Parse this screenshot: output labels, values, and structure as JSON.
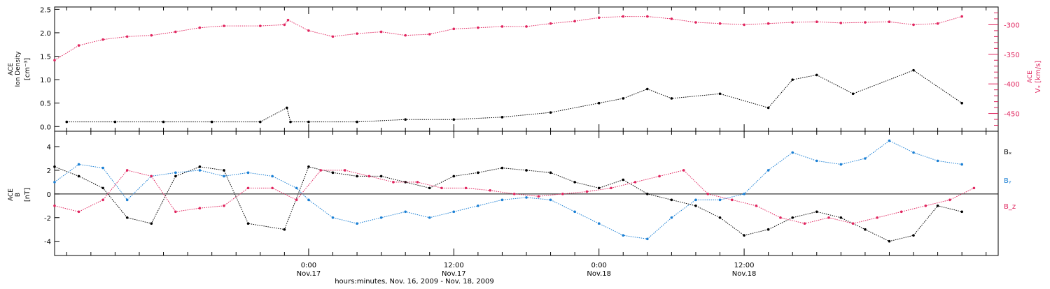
{
  "colors": {
    "axis": "#000000",
    "density": "#000000",
    "velocity": "#e0245e",
    "bx": "#000000",
    "by": "#1a7fd4",
    "bz": "#e0245e"
  },
  "chart_data": [
    {
      "type": "scatter",
      "panel": "top",
      "xlim_hours": [
        -21,
        57
      ],
      "left_axis": {
        "label_lines": [
          "ACE",
          "Ion Density"
        ],
        "unit": "[cm⁻³]",
        "ylim": [
          -0.1,
          2.55
        ],
        "ticks": [
          "0.0",
          "0.5",
          "1.0",
          "1.5",
          "2.0",
          "2.5"
        ],
        "tick_values": [
          0.0,
          0.5,
          1.0,
          1.5,
          2.0,
          2.5
        ]
      },
      "right_axis": {
        "label_lines": [
          "ACE",
          "Vₓ [km/s]"
        ],
        "ylim": [
          -480,
          -270
        ],
        "ticks": [
          "-300",
          "-350",
          "-400",
          "-450"
        ],
        "tick_values": [
          -300,
          -350,
          -400,
          -450
        ]
      },
      "series": [
        {
          "name": "Ion Density",
          "axis": "left",
          "color_key": "density",
          "x_hours": [
            -20,
            -16,
            -12,
            -8,
            -4,
            -1.8,
            -1.5,
            0,
            4,
            8,
            12,
            16,
            20,
            24,
            26,
            28,
            30,
            34,
            38,
            40,
            42,
            45,
            50,
            54
          ],
          "y": [
            0.1,
            0.1,
            0.1,
            0.1,
            0.1,
            0.4,
            0.1,
            0.1,
            0.1,
            0.15,
            0.15,
            0.2,
            0.3,
            0.5,
            0.6,
            0.8,
            0.6,
            0.7,
            0.4,
            1.0,
            1.1,
            0.7,
            1.2,
            0.5
          ]
        },
        {
          "name": "Vₓ",
          "axis": "right",
          "color_key": "velocity",
          "x_hours": [
            -21,
            -19,
            -17,
            -15,
            -13,
            -11,
            -9,
            -7,
            -4,
            -2,
            -1.7,
            0,
            2,
            4,
            6,
            8,
            10,
            12,
            14,
            16,
            18,
            20,
            22,
            24,
            26,
            28,
            30,
            32,
            34,
            36,
            38,
            40,
            42,
            44,
            46,
            48,
            50,
            52,
            54
          ],
          "y": [
            -360,
            -335,
            -325,
            -320,
            -318,
            -312,
            -305,
            -302,
            -302,
            -300,
            -292,
            -310,
            -320,
            -315,
            -312,
            -318,
            -316,
            -307,
            -305,
            -303,
            -303,
            -298,
            -294,
            -288,
            -286,
            -286,
            -290,
            -296,
            -298,
            -300,
            -298,
            -296,
            -295,
            -297,
            -296,
            -295,
            -300,
            -298,
            -286
          ]
        }
      ]
    },
    {
      "type": "scatter",
      "panel": "bottom",
      "xlim_hours": [
        -21,
        57
      ],
      "y_axis": {
        "label_lines": [
          "ACE",
          "B"
        ],
        "unit": "[nT]",
        "ylim": [
          -5.2,
          5.3
        ],
        "ticks": [
          "4",
          "2",
          "0",
          "-2",
          "-4"
        ],
        "tick_values": [
          4,
          2,
          0,
          -2,
          -4
        ]
      },
      "legend_position": "right",
      "series": [
        {
          "name": "Bₓ",
          "color_key": "bx",
          "x_hours": [
            -21,
            -19,
            -17,
            -15,
            -13,
            -11,
            -9,
            -7,
            -5,
            -2,
            0,
            2,
            4,
            6,
            8,
            10,
            12,
            14,
            16,
            18,
            20,
            22,
            24,
            26,
            28,
            30,
            32,
            34,
            36,
            38,
            40,
            42,
            44,
            46,
            48,
            50,
            52,
            54
          ],
          "y": [
            2.3,
            1.5,
            0.5,
            -2.0,
            -2.5,
            1.5,
            2.3,
            2.0,
            -2.5,
            -3.0,
            2.3,
            1.8,
            1.5,
            1.5,
            1.0,
            0.5,
            1.5,
            1.8,
            2.2,
            2.0,
            1.8,
            1.0,
            0.5,
            1.2,
            0,
            -0.5,
            -1.0,
            -2.0,
            -3.5,
            -3.0,
            -2.0,
            -1.5,
            -2.0,
            -3.0,
            -4.0,
            -3.5,
            -1.0,
            -1.5
          ]
        },
        {
          "name": "Bᵧ",
          "color_key": "by",
          "x_hours": [
            -21,
            -19,
            -17,
            -15,
            -13,
            -11,
            -9,
            -7,
            -5,
            -3,
            -1,
            0,
            2,
            4,
            6,
            8,
            10,
            12,
            14,
            16,
            18,
            20,
            22,
            24,
            26,
            28,
            30,
            32,
            34,
            36,
            38,
            40,
            42,
            44,
            46,
            48,
            50,
            52,
            54
          ],
          "y": [
            1.0,
            2.5,
            2.2,
            -0.5,
            1.5,
            1.8,
            2.0,
            1.5,
            1.8,
            1.5,
            0.5,
            -0.5,
            -2.0,
            -2.5,
            -2.0,
            -1.5,
            -2.0,
            -1.5,
            -1.0,
            -0.5,
            -0.3,
            -0.5,
            -1.5,
            -2.5,
            -3.5,
            -3.8,
            -2.0,
            -0.5,
            -0.5,
            0,
            2.0,
            3.5,
            2.8,
            2.5,
            3.0,
            4.5,
            3.5,
            2.8,
            2.5
          ]
        },
        {
          "name": "B_z",
          "color_key": "bz",
          "x_hours": [
            -21,
            -19,
            -17,
            -15,
            -13,
            -11,
            -9,
            -7,
            -5,
            -3,
            -1,
            1,
            3,
            5,
            7,
            9,
            11,
            13,
            15,
            17,
            19,
            21,
            23,
            25,
            27,
            29,
            31,
            33,
            35,
            37,
            39,
            41,
            43,
            45,
            47,
            49,
            51,
            53,
            55
          ],
          "y": [
            -1.0,
            -1.5,
            -0.5,
            2.0,
            1.5,
            -1.5,
            -1.2,
            -1.0,
            0.5,
            0.5,
            -0.5,
            2.0,
            2.0,
            1.5,
            1.0,
            1.0,
            0.5,
            0.5,
            0.3,
            0,
            -0.2,
            0,
            0.2,
            0.5,
            1.0,
            1.5,
            2.0,
            0,
            -0.5,
            -1.0,
            -2.0,
            -2.5,
            -2.0,
            -2.5,
            -2.0,
            -1.5,
            -1.0,
            -0.5,
            0.5
          ]
        }
      ]
    }
  ],
  "x_axis": {
    "ticks": [
      {
        "hour": 0,
        "time": "0:00",
        "date": "Nov.17"
      },
      {
        "hour": 12,
        "time": "12:00",
        "date": "Nov.17"
      },
      {
        "hour": 24,
        "time": "0:00",
        "date": "Nov.18"
      },
      {
        "hour": 36,
        "time": "12:00",
        "date": "Nov.18"
      }
    ],
    "title": "hours:minutes, Nov. 16, 2009 - Nov. 18, 2009"
  }
}
